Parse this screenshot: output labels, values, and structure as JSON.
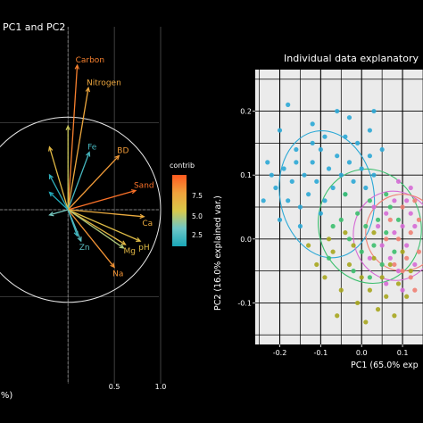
{
  "chart_data": [
    {
      "type": "scatter",
      "subtype": "pca-variable-correlation-circle",
      "title": "PC1 and PC2",
      "xlabel": "(%)",
      "ylabel": "",
      "xlim": [
        -0.85,
        1.0
      ],
      "ylim": [
        -1.05,
        1.05
      ],
      "x_ticks": [
        "0.5",
        "1.0"
      ],
      "grid": true,
      "legend": {
        "title": "contrib",
        "ticks": [
          "7.5",
          "5.0",
          "2.5"
        ],
        "position": "right",
        "colors": [
          "#ff5a1f",
          "#f0a23c",
          "#d9c84a",
          "#6ec7c7",
          "#1aa6b7"
        ]
      },
      "variables": [
        {
          "name": "Carbon",
          "x": 0.1,
          "y": 0.83,
          "contrib": 7.5
        },
        {
          "name": "Nitrogen",
          "x": 0.22,
          "y": 0.7,
          "contrib": 6.4
        },
        {
          "name": "Fe",
          "x": 0.23,
          "y": 0.33,
          "contrib": 2.0
        },
        {
          "name": "BD",
          "x": 0.55,
          "y": 0.31,
          "contrib": 6.8
        },
        {
          "name": "Sand",
          "x": 0.73,
          "y": 0.11,
          "contrib": 7.9
        },
        {
          "name": "Ca",
          "x": 0.82,
          "y": -0.04,
          "contrib": 6.2
        },
        {
          "name": "pH",
          "x": 0.78,
          "y": -0.18,
          "contrib": 5.3
        },
        {
          "name": "Mg",
          "x": 0.62,
          "y": -0.2,
          "contrib": 5.6
        },
        {
          "name": "Na",
          "x": 0.5,
          "y": -0.33,
          "contrib": 7.0
        },
        {
          "name": "Zn",
          "x": 0.14,
          "y": -0.18,
          "contrib": 2.5
        },
        {
          "name": "",
          "x": 0.0,
          "y": 0.48,
          "contrib": 4.5
        },
        {
          "name": "",
          "x": -0.2,
          "y": 0.36,
          "contrib": 5.5
        },
        {
          "name": "",
          "x": -0.2,
          "y": 0.2,
          "contrib": 1.5
        },
        {
          "name": "",
          "x": -0.2,
          "y": 0.1,
          "contrib": 1.2
        },
        {
          "name": "",
          "x": -0.2,
          "y": -0.03,
          "contrib": 3.0
        },
        {
          "name": "",
          "x": 0.1,
          "y": -0.15,
          "contrib": 1.8
        },
        {
          "name": "",
          "x": 0.6,
          "y": -0.22,
          "contrib": 4.0
        }
      ]
    },
    {
      "type": "scatter",
      "title": "Individual data explanatory",
      "xlabel": "PC1 (65.0% exp",
      "ylabel": "PC2 (16.0% explained var.)",
      "xlim": [
        -0.26,
        0.15
      ],
      "ylim": [
        -0.165,
        0.265
      ],
      "x_ticks": [
        "-0.2",
        "-0.1",
        "0.0",
        "0.1"
      ],
      "y_ticks": [
        "0.2",
        "0.1",
        "0.0",
        "-0.1"
      ],
      "grid": true,
      "groups": [
        {
          "color": "#2ca9d6",
          "ellipse": {
            "cx": -0.085,
            "cy": 0.07,
            "rx": 0.115,
            "ry": 0.1,
            "angle": -10
          }
        },
        {
          "color": "#3cbf6e",
          "ellipse": {
            "cx": 0.02,
            "cy": 0.02,
            "rx": 0.125,
            "ry": 0.09,
            "angle": -15
          }
        },
        {
          "color": "#a7a61e",
          "ellipse": null
        },
        {
          "color": "#d66bd6",
          "ellipse": {
            "cx": 0.08,
            "cy": 0.005,
            "rx": 0.1,
            "ry": 0.07,
            "angle": -10
          }
        },
        {
          "color": "#f08073",
          "ellipse": {
            "cx": 0.1,
            "cy": 0.01,
            "rx": 0.09,
            "ry": 0.06,
            "angle": 0
          }
        }
      ],
      "points": [
        [
          -0.2,
          0.17,
          0
        ],
        [
          -0.18,
          0.21,
          0
        ],
        [
          -0.12,
          0.18,
          0
        ],
        [
          -0.06,
          0.2,
          0
        ],
        [
          -0.03,
          0.19,
          0
        ],
        [
          0.02,
          0.17,
          0
        ],
        [
          0.03,
          0.2,
          0
        ],
        [
          -0.22,
          0.1,
          0
        ],
        [
          -0.21,
          0.08,
          0
        ],
        [
          -0.19,
          0.11,
          0
        ],
        [
          -0.18,
          0.06,
          0
        ],
        [
          -0.17,
          0.09,
          0
        ],
        [
          -0.16,
          0.12,
          0
        ],
        [
          -0.15,
          0.05,
          0
        ],
        [
          -0.14,
          0.1,
          0
        ],
        [
          -0.13,
          0.07,
          0
        ],
        [
          -0.12,
          0.12,
          0
        ],
        [
          -0.11,
          0.09,
          0
        ],
        [
          -0.1,
          0.14,
          0
        ],
        [
          -0.09,
          0.06,
          0
        ],
        [
          -0.08,
          0.11,
          0
        ],
        [
          -0.07,
          0.08,
          0
        ],
        [
          -0.06,
          0.13,
          0
        ],
        [
          -0.05,
          0.1,
          0
        ],
        [
          -0.04,
          0.07,
          0
        ],
        [
          -0.03,
          0.12,
          0
        ],
        [
          -0.02,
          0.09,
          0
        ],
        [
          -0.01,
          0.15,
          0
        ],
        [
          0.0,
          0.11,
          0
        ],
        [
          0.01,
          0.08,
          0
        ],
        [
          0.02,
          0.13,
          0
        ],
        [
          0.03,
          0.1,
          0
        ],
        [
          -0.2,
          0.03,
          0
        ],
        [
          -0.15,
          0.02,
          0
        ],
        [
          -0.1,
          0.04,
          0
        ],
        [
          -0.24,
          0.06,
          0
        ],
        [
          -0.23,
          0.12,
          0
        ],
        [
          -0.12,
          0.15,
          0
        ],
        [
          -0.04,
          0.16,
          0
        ],
        [
          0.05,
          0.14,
          0
        ],
        [
          -0.16,
          0.14,
          0
        ],
        [
          -0.09,
          0.16,
          0
        ],
        [
          -0.05,
          0.03,
          1
        ],
        [
          -0.03,
          0.0,
          1
        ],
        [
          -0.01,
          0.04,
          1
        ],
        [
          0.0,
          -0.02,
          1
        ],
        [
          0.01,
          0.02,
          1
        ],
        [
          0.02,
          0.06,
          1
        ],
        [
          0.03,
          -0.01,
          1
        ],
        [
          0.04,
          0.03,
          1
        ],
        [
          0.05,
          -0.04,
          1
        ],
        [
          0.06,
          0.01,
          1
        ],
        [
          0.07,
          0.05,
          1
        ],
        [
          0.08,
          -0.02,
          1
        ],
        [
          -0.07,
          0.02,
          1
        ],
        [
          -0.02,
          -0.05,
          1
        ],
        [
          0.02,
          -0.06,
          1
        ],
        [
          0.09,
          0.03,
          1
        ],
        [
          -0.04,
          0.07,
          1
        ],
        [
          0.06,
          0.07,
          1
        ],
        [
          -0.08,
          -0.03,
          1
        ],
        [
          -0.09,
          -0.06,
          2
        ],
        [
          -0.07,
          -0.02,
          2
        ],
        [
          -0.05,
          -0.08,
          2
        ],
        [
          -0.03,
          -0.04,
          2
        ],
        [
          -0.01,
          -0.1,
          2
        ],
        [
          0.0,
          -0.06,
          2
        ],
        [
          0.01,
          -0.13,
          2
        ],
        [
          0.02,
          -0.08,
          2
        ],
        [
          0.03,
          -0.03,
          2
        ],
        [
          0.04,
          -0.11,
          2
        ],
        [
          0.05,
          -0.06,
          2
        ],
        [
          0.06,
          -0.09,
          2
        ],
        [
          0.07,
          -0.04,
          2
        ],
        [
          0.08,
          -0.12,
          2
        ],
        [
          0.09,
          -0.07,
          2
        ],
        [
          0.1,
          -0.02,
          2
        ],
        [
          0.11,
          -0.09,
          2
        ],
        [
          -0.11,
          -0.04,
          2
        ],
        [
          -0.06,
          -0.12,
          2
        ],
        [
          -0.02,
          -0.01,
          2
        ],
        [
          0.03,
          0.01,
          2
        ],
        [
          -0.04,
          0.01,
          2
        ],
        [
          0.12,
          -0.05,
          2
        ],
        [
          -0.13,
          -0.01,
          2
        ],
        [
          -0.08,
          0.0,
          2
        ],
        [
          0.04,
          0.02,
          3
        ],
        [
          0.05,
          -0.01,
          3
        ],
        [
          0.06,
          0.04,
          3
        ],
        [
          0.07,
          -0.03,
          3
        ],
        [
          0.08,
          0.01,
          3
        ],
        [
          0.09,
          -0.05,
          3
        ],
        [
          0.1,
          0.02,
          3
        ],
        [
          0.11,
          -0.01,
          3
        ],
        [
          0.12,
          0.04,
          3
        ],
        [
          0.13,
          -0.04,
          3
        ],
        [
          0.08,
          0.06,
          3
        ],
        [
          0.1,
          -0.08,
          3
        ],
        [
          0.12,
          0.08,
          3
        ],
        [
          0.06,
          -0.07,
          3
        ],
        [
          0.03,
          0.05,
          3
        ],
        [
          0.13,
          0.02,
          3
        ],
        [
          0.09,
          0.09,
          3
        ],
        [
          0.02,
          -0.03,
          3
        ],
        [
          0.11,
          0.06,
          3
        ],
        [
          0.07,
          0.03,
          4
        ],
        [
          0.09,
          0.0,
          4
        ],
        [
          0.1,
          0.05,
          4
        ],
        [
          0.11,
          -0.03,
          4
        ],
        [
          0.12,
          0.01,
          4
        ],
        [
          0.13,
          0.06,
          4
        ],
        [
          0.14,
          -0.02,
          4
        ],
        [
          0.08,
          -0.04,
          4
        ],
        [
          0.12,
          -0.06,
          4
        ],
        [
          0.14,
          0.03,
          4
        ],
        [
          0.06,
          0.0,
          4
        ],
        [
          0.13,
          -0.08,
          4
        ],
        [
          0.1,
          -0.05,
          4
        ]
      ]
    }
  ]
}
